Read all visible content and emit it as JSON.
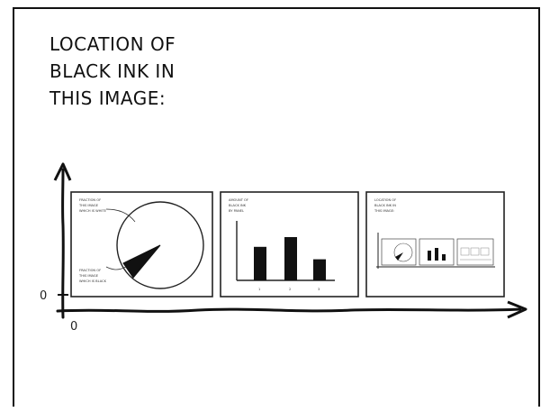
{
  "caption": "LOCATION OF\nBLACK INK IN\nTHIS IMAGE:",
  "axis": {
    "y_zero": "0",
    "x_zero": "0"
  },
  "panels": [
    {
      "caption_lines": [
        "FRACTION OF",
        "THIS IMAGE",
        "WHICH IS WHITE"
      ],
      "slice_caption_lines": [
        "FRACTION OF",
        "THIS IMAGE",
        "WHICH IS BLACK"
      ]
    },
    {
      "caption_lines": [
        "AMOUNT OF",
        "BLACK INK",
        "BY PANEL"
      ],
      "tick_labels": [
        "1",
        "2",
        "3"
      ],
      "bar_values": [
        0.62,
        0.8,
        0.39
      ]
    },
    {
      "caption_lines": [
        "LOCATION OF",
        "BLACK INK IN",
        "THIS IMAGE:"
      ]
    }
  ],
  "colors": {
    "ink": "#111111",
    "paper": "#ffffff"
  }
}
